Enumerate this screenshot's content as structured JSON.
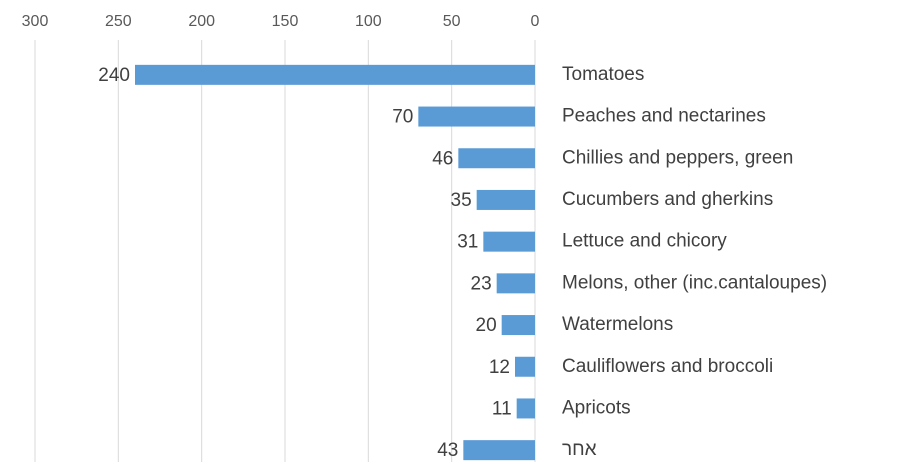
{
  "chart_data": {
    "type": "bar",
    "orientation": "horizontal",
    "categories": [
      "Tomatoes",
      "Peaches and nectarines",
      "Chillies and peppers, green",
      "Cucumbers and gherkins",
      "Lettuce and chicory",
      "Melons, other (inc.cantaloupes)",
      "Watermelons",
      "Cauliflowers and broccoli",
      "Apricots",
      "אחר"
    ],
    "values": [
      240,
      70,
      46,
      35,
      31,
      23,
      20,
      12,
      11,
      43
    ],
    "color": "#5b9bd5",
    "xlim": [
      0,
      300
    ],
    "xticks": [
      0,
      50,
      100,
      150,
      200,
      250,
      300
    ],
    "x_inverted": true,
    "grid": true
  }
}
